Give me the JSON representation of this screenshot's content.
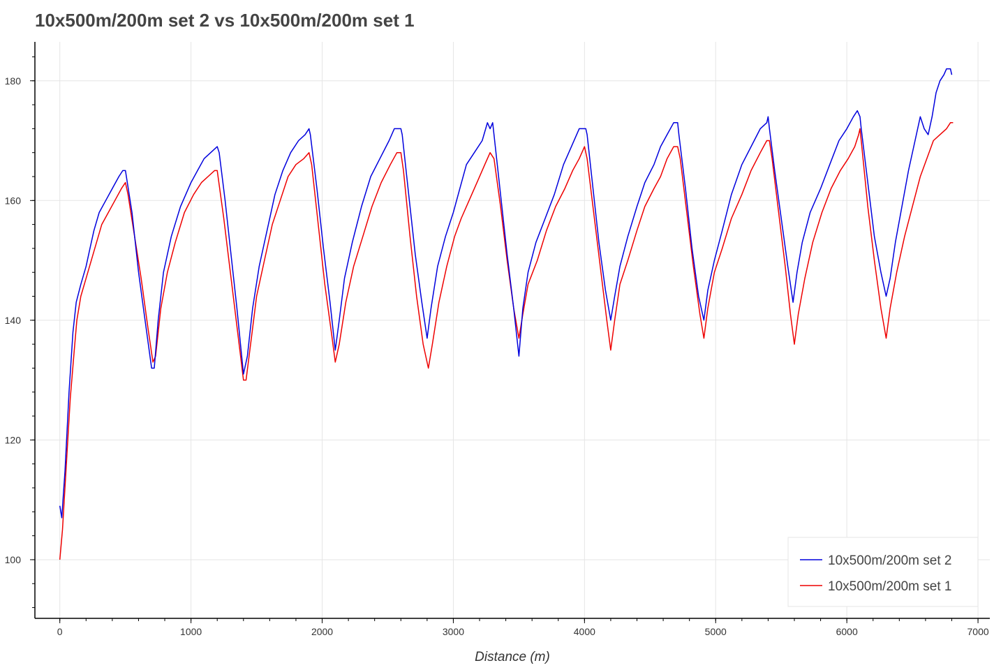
{
  "chart_data": {
    "type": "line",
    "title": "10x500m/200m set 2 vs 10x500m/200m set 1",
    "xlabel": "Distance (m)",
    "ylabel": "",
    "xlim": [
      -190,
      7090
    ],
    "ylim": [
      90.2,
      186.5
    ],
    "xticks": [
      0,
      1000,
      2000,
      3000,
      4000,
      5000,
      6000,
      7000
    ],
    "yticks": [
      100,
      120,
      140,
      160,
      180
    ],
    "grid": true,
    "legend_position": "bottom-right",
    "series": [
      {
        "name": "10x500m/200m set 2",
        "color": "#0000dd",
        "points": [
          [
            0,
            109
          ],
          [
            15,
            107
          ],
          [
            40,
            115
          ],
          [
            70,
            128
          ],
          [
            100,
            138
          ],
          [
            125,
            143
          ],
          [
            160,
            146
          ],
          [
            200,
            149
          ],
          [
            230,
            152
          ],
          [
            260,
            155
          ],
          [
            300,
            158
          ],
          [
            350,
            160
          ],
          [
            400,
            162
          ],
          [
            450,
            164
          ],
          [
            480,
            165
          ],
          [
            500,
            165
          ],
          [
            550,
            158
          ],
          [
            600,
            148
          ],
          [
            650,
            140
          ],
          [
            700,
            132
          ],
          [
            720,
            132
          ],
          [
            750,
            140
          ],
          [
            790,
            148
          ],
          [
            850,
            154
          ],
          [
            920,
            159
          ],
          [
            1000,
            163
          ],
          [
            1050,
            165
          ],
          [
            1100,
            167
          ],
          [
            1150,
            168
          ],
          [
            1200,
            169
          ],
          [
            1215,
            168
          ],
          [
            1260,
            160
          ],
          [
            1300,
            152
          ],
          [
            1350,
            142
          ],
          [
            1400,
            131
          ],
          [
            1430,
            134
          ],
          [
            1470,
            142
          ],
          [
            1520,
            149
          ],
          [
            1580,
            155
          ],
          [
            1640,
            161
          ],
          [
            1700,
            165
          ],
          [
            1760,
            168
          ],
          [
            1820,
            170
          ],
          [
            1870,
            171
          ],
          [
            1900,
            172
          ],
          [
            1910,
            171
          ],
          [
            1960,
            162
          ],
          [
            2010,
            152
          ],
          [
            2060,
            143
          ],
          [
            2100,
            135
          ],
          [
            2130,
            140
          ],
          [
            2170,
            147
          ],
          [
            2230,
            153
          ],
          [
            2300,
            159
          ],
          [
            2370,
            164
          ],
          [
            2440,
            167
          ],
          [
            2510,
            170
          ],
          [
            2550,
            172
          ],
          [
            2600,
            172
          ],
          [
            2610,
            171
          ],
          [
            2660,
            161
          ],
          [
            2710,
            151
          ],
          [
            2760,
            143
          ],
          [
            2800,
            137
          ],
          [
            2830,
            142
          ],
          [
            2880,
            149
          ],
          [
            2940,
            154
          ],
          [
            3000,
            158
          ],
          [
            3050,
            162
          ],
          [
            3100,
            166
          ],
          [
            3160,
            168
          ],
          [
            3220,
            170
          ],
          [
            3260,
            173
          ],
          [
            3280,
            172
          ],
          [
            3300,
            173
          ],
          [
            3310,
            171
          ],
          [
            3360,
            161
          ],
          [
            3410,
            151
          ],
          [
            3460,
            142
          ],
          [
            3500,
            134
          ],
          [
            3530,
            142
          ],
          [
            3570,
            148
          ],
          [
            3630,
            153
          ],
          [
            3700,
            157
          ],
          [
            3770,
            161
          ],
          [
            3840,
            166
          ],
          [
            3900,
            169
          ],
          [
            3960,
            172
          ],
          [
            4010,
            172
          ],
          [
            4020,
            171
          ],
          [
            4060,
            163
          ],
          [
            4110,
            153
          ],
          [
            4160,
            145
          ],
          [
            4200,
            140
          ],
          [
            4230,
            144
          ],
          [
            4270,
            149
          ],
          [
            4330,
            154
          ],
          [
            4400,
            159
          ],
          [
            4460,
            163
          ],
          [
            4530,
            166
          ],
          [
            4580,
            169
          ],
          [
            4630,
            171
          ],
          [
            4680,
            173
          ],
          [
            4710,
            173
          ],
          [
            4720,
            171
          ],
          [
            4770,
            162
          ],
          [
            4820,
            152
          ],
          [
            4870,
            144
          ],
          [
            4910,
            140
          ],
          [
            4940,
            145
          ],
          [
            4990,
            150
          ],
          [
            5050,
            155
          ],
          [
            5120,
            161
          ],
          [
            5200,
            166
          ],
          [
            5270,
            169
          ],
          [
            5340,
            172
          ],
          [
            5390,
            173
          ],
          [
            5400,
            174
          ],
          [
            5410,
            172
          ],
          [
            5450,
            165
          ],
          [
            5500,
            157
          ],
          [
            5550,
            149
          ],
          [
            5590,
            143
          ],
          [
            5620,
            148
          ],
          [
            5660,
            153
          ],
          [
            5720,
            158
          ],
          [
            5800,
            162
          ],
          [
            5870,
            166
          ],
          [
            5940,
            170
          ],
          [
            6000,
            172
          ],
          [
            6050,
            174
          ],
          [
            6080,
            175
          ],
          [
            6100,
            174
          ],
          [
            6110,
            172
          ],
          [
            6160,
            163
          ],
          [
            6210,
            154
          ],
          [
            6260,
            148
          ],
          [
            6300,
            144
          ],
          [
            6330,
            147
          ],
          [
            6370,
            153
          ],
          [
            6420,
            159
          ],
          [
            6470,
            165
          ],
          [
            6520,
            170
          ],
          [
            6560,
            174
          ],
          [
            6590,
            172
          ],
          [
            6620,
            171
          ],
          [
            6650,
            174
          ],
          [
            6680,
            178
          ],
          [
            6710,
            180
          ],
          [
            6740,
            181
          ],
          [
            6760,
            182
          ],
          [
            6790,
            182
          ],
          [
            6800,
            181
          ]
        ]
      },
      {
        "name": "10x500m/200m set 1",
        "color": "#ee0000",
        "points": [
          [
            0,
            100
          ],
          [
            20,
            105
          ],
          [
            50,
            116
          ],
          [
            80,
            127
          ],
          [
            110,
            135
          ],
          [
            130,
            140
          ],
          [
            160,
            144
          ],
          [
            200,
            147
          ],
          [
            240,
            150
          ],
          [
            280,
            153
          ],
          [
            320,
            156
          ],
          [
            370,
            158
          ],
          [
            420,
            160
          ],
          [
            470,
            162
          ],
          [
            500,
            163
          ],
          [
            520,
            161
          ],
          [
            570,
            154
          ],
          [
            620,
            147
          ],
          [
            670,
            139
          ],
          [
            710,
            133
          ],
          [
            730,
            134
          ],
          [
            770,
            142
          ],
          [
            820,
            148
          ],
          [
            880,
            153
          ],
          [
            950,
            158
          ],
          [
            1020,
            161
          ],
          [
            1080,
            163
          ],
          [
            1130,
            164
          ],
          [
            1180,
            165
          ],
          [
            1200,
            165
          ],
          [
            1250,
            157
          ],
          [
            1300,
            148
          ],
          [
            1350,
            139
          ],
          [
            1400,
            130
          ],
          [
            1420,
            130
          ],
          [
            1460,
            137
          ],
          [
            1500,
            144
          ],
          [
            1560,
            150
          ],
          [
            1620,
            156
          ],
          [
            1680,
            160
          ],
          [
            1740,
            164
          ],
          [
            1800,
            166
          ],
          [
            1860,
            167
          ],
          [
            1900,
            168
          ],
          [
            1920,
            166
          ],
          [
            1970,
            156
          ],
          [
            2020,
            146
          ],
          [
            2070,
            138
          ],
          [
            2100,
            133
          ],
          [
            2130,
            136
          ],
          [
            2180,
            143
          ],
          [
            2240,
            149
          ],
          [
            2310,
            154
          ],
          [
            2380,
            159
          ],
          [
            2450,
            163
          ],
          [
            2520,
            166
          ],
          [
            2570,
            168
          ],
          [
            2600,
            168
          ],
          [
            2620,
            165
          ],
          [
            2670,
            154
          ],
          [
            2720,
            144
          ],
          [
            2770,
            136
          ],
          [
            2810,
            132
          ],
          [
            2840,
            136
          ],
          [
            2890,
            143
          ],
          [
            2950,
            149
          ],
          [
            3010,
            154
          ],
          [
            3060,
            157
          ],
          [
            3120,
            160
          ],
          [
            3180,
            163
          ],
          [
            3240,
            166
          ],
          [
            3280,
            168
          ],
          [
            3310,
            167
          ],
          [
            3360,
            159
          ],
          [
            3410,
            150
          ],
          [
            3460,
            142
          ],
          [
            3500,
            137
          ],
          [
            3530,
            141
          ],
          [
            3570,
            146
          ],
          [
            3640,
            150
          ],
          [
            3710,
            155
          ],
          [
            3780,
            159
          ],
          [
            3850,
            162
          ],
          [
            3910,
            165
          ],
          [
            3960,
            167
          ],
          [
            4000,
            169
          ],
          [
            4020,
            167
          ],
          [
            4070,
            158
          ],
          [
            4120,
            149
          ],
          [
            4170,
            140
          ],
          [
            4200,
            135
          ],
          [
            4230,
            140
          ],
          [
            4270,
            146
          ],
          [
            4330,
            150
          ],
          [
            4400,
            155
          ],
          [
            4460,
            159
          ],
          [
            4530,
            162
          ],
          [
            4580,
            164
          ],
          [
            4630,
            167
          ],
          [
            4680,
            169
          ],
          [
            4710,
            169
          ],
          [
            4730,
            167
          ],
          [
            4780,
            158
          ],
          [
            4830,
            149
          ],
          [
            4880,
            141
          ],
          [
            4910,
            137
          ],
          [
            4940,
            142
          ],
          [
            4990,
            148
          ],
          [
            5050,
            152
          ],
          [
            5120,
            157
          ],
          [
            5200,
            161
          ],
          [
            5270,
            165
          ],
          [
            5340,
            168
          ],
          [
            5390,
            170
          ],
          [
            5410,
            170
          ],
          [
            5430,
            167
          ],
          [
            5480,
            158
          ],
          [
            5530,
            149
          ],
          [
            5570,
            141
          ],
          [
            5600,
            136
          ],
          [
            5630,
            141
          ],
          [
            5680,
            147
          ],
          [
            5740,
            153
          ],
          [
            5810,
            158
          ],
          [
            5880,
            162
          ],
          [
            5950,
            165
          ],
          [
            6010,
            167
          ],
          [
            6060,
            169
          ],
          [
            6090,
            171
          ],
          [
            6100,
            172
          ],
          [
            6110,
            170
          ],
          [
            6160,
            159
          ],
          [
            6210,
            150
          ],
          [
            6260,
            142
          ],
          [
            6300,
            137
          ],
          [
            6330,
            142
          ],
          [
            6380,
            148
          ],
          [
            6440,
            154
          ],
          [
            6500,
            159
          ],
          [
            6560,
            164
          ],
          [
            6610,
            167
          ],
          [
            6660,
            170
          ],
          [
            6710,
            171
          ],
          [
            6760,
            172
          ],
          [
            6790,
            173
          ],
          [
            6810,
            173
          ]
        ]
      }
    ]
  }
}
